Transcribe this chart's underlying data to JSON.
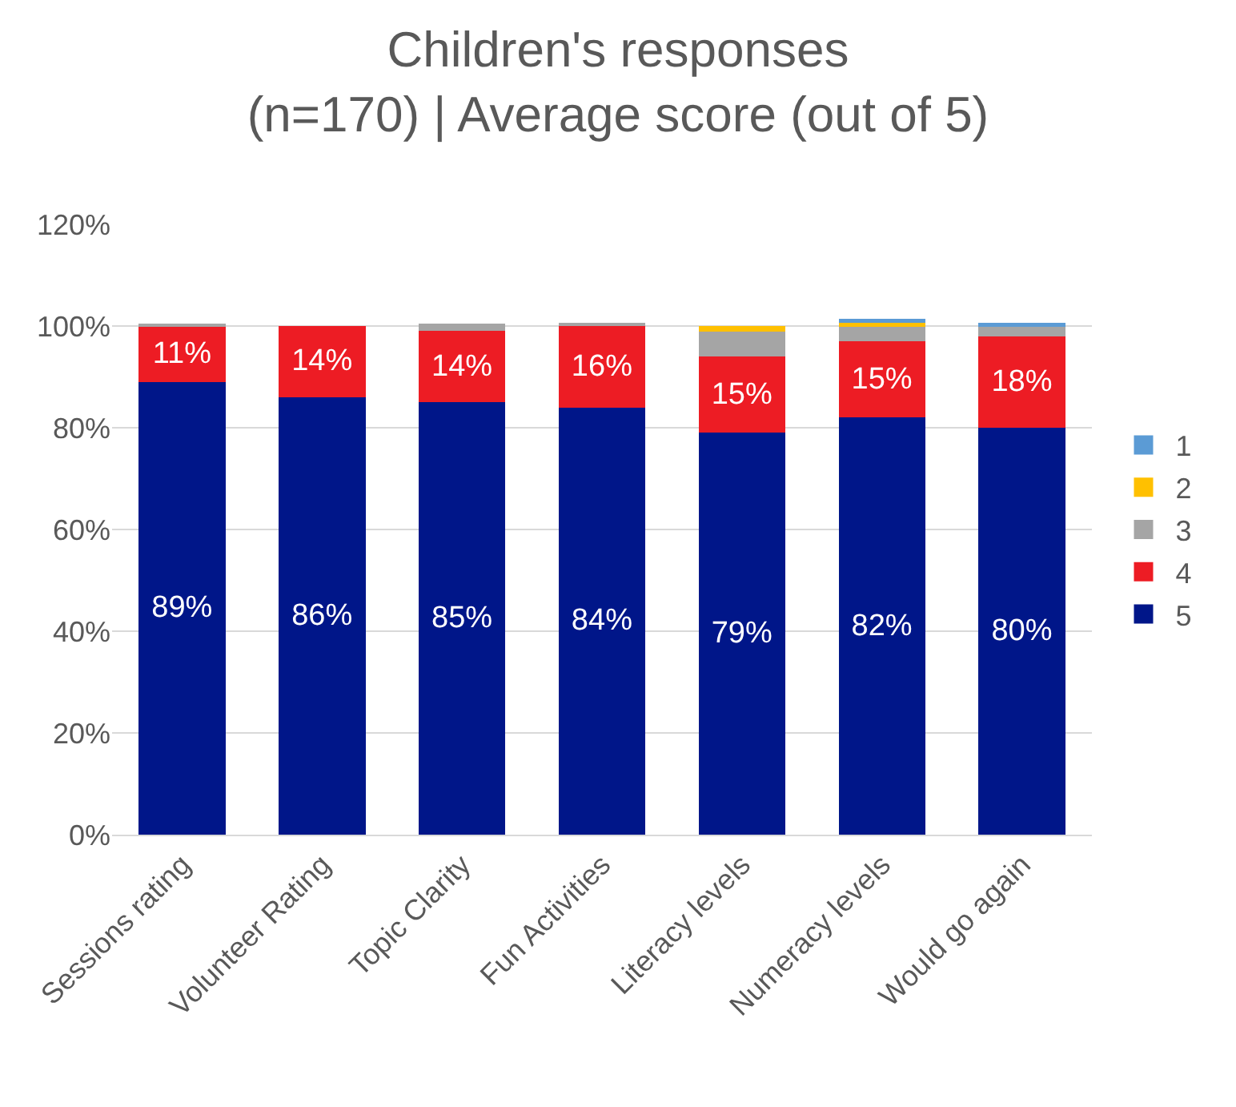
{
  "chart_data": {
    "type": "bar",
    "title": "Children's responses\n(n=170) | Average score (out of 5)",
    "stacked": true,
    "categories": [
      "Sessions rating",
      "Volunteer Rating",
      "Topic Clarity",
      "Fun Activities",
      "Literacy levels",
      "Numeracy levels",
      "Would go again"
    ],
    "series": [
      {
        "name": "5",
        "color": "#001689",
        "values": [
          89,
          86,
          85,
          84,
          79,
          82,
          80
        ],
        "value_labels": [
          "89%",
          "86%",
          "85%",
          "84%",
          "79%",
          "82%",
          "80%"
        ]
      },
      {
        "name": "4",
        "color": "#ed1c24",
        "values": [
          11,
          14,
          14,
          16,
          15,
          15,
          18
        ],
        "value_labels": [
          "11%",
          "14%",
          "14%",
          "16%",
          "15%",
          "15%",
          "18%"
        ]
      },
      {
        "name": "3",
        "color": "#a5a5a5",
        "values": [
          0.5,
          0,
          1.5,
          0.7,
          4.9,
          3.1,
          2.0
        ]
      },
      {
        "name": "2",
        "color": "#ffc000",
        "values": [
          0,
          0,
          0,
          0,
          1.1,
          0.6,
          0
        ]
      },
      {
        "name": "1",
        "color": "#5b9bd5",
        "values": [
          0,
          0,
          0,
          0,
          0,
          0.7,
          0.6
        ]
      }
    ],
    "ylim": [
      0,
      120
    ],
    "yticks": [
      {
        "value": 0,
        "label": "0%"
      },
      {
        "value": 20,
        "label": "20%"
      },
      {
        "value": 40,
        "label": "40%"
      },
      {
        "value": 60,
        "label": "60%"
      },
      {
        "value": 80,
        "label": "80%"
      },
      {
        "value": 100,
        "label": "100%"
      },
      {
        "value": 120,
        "label": "120%"
      }
    ],
    "grid": "y",
    "legend": "right"
  }
}
